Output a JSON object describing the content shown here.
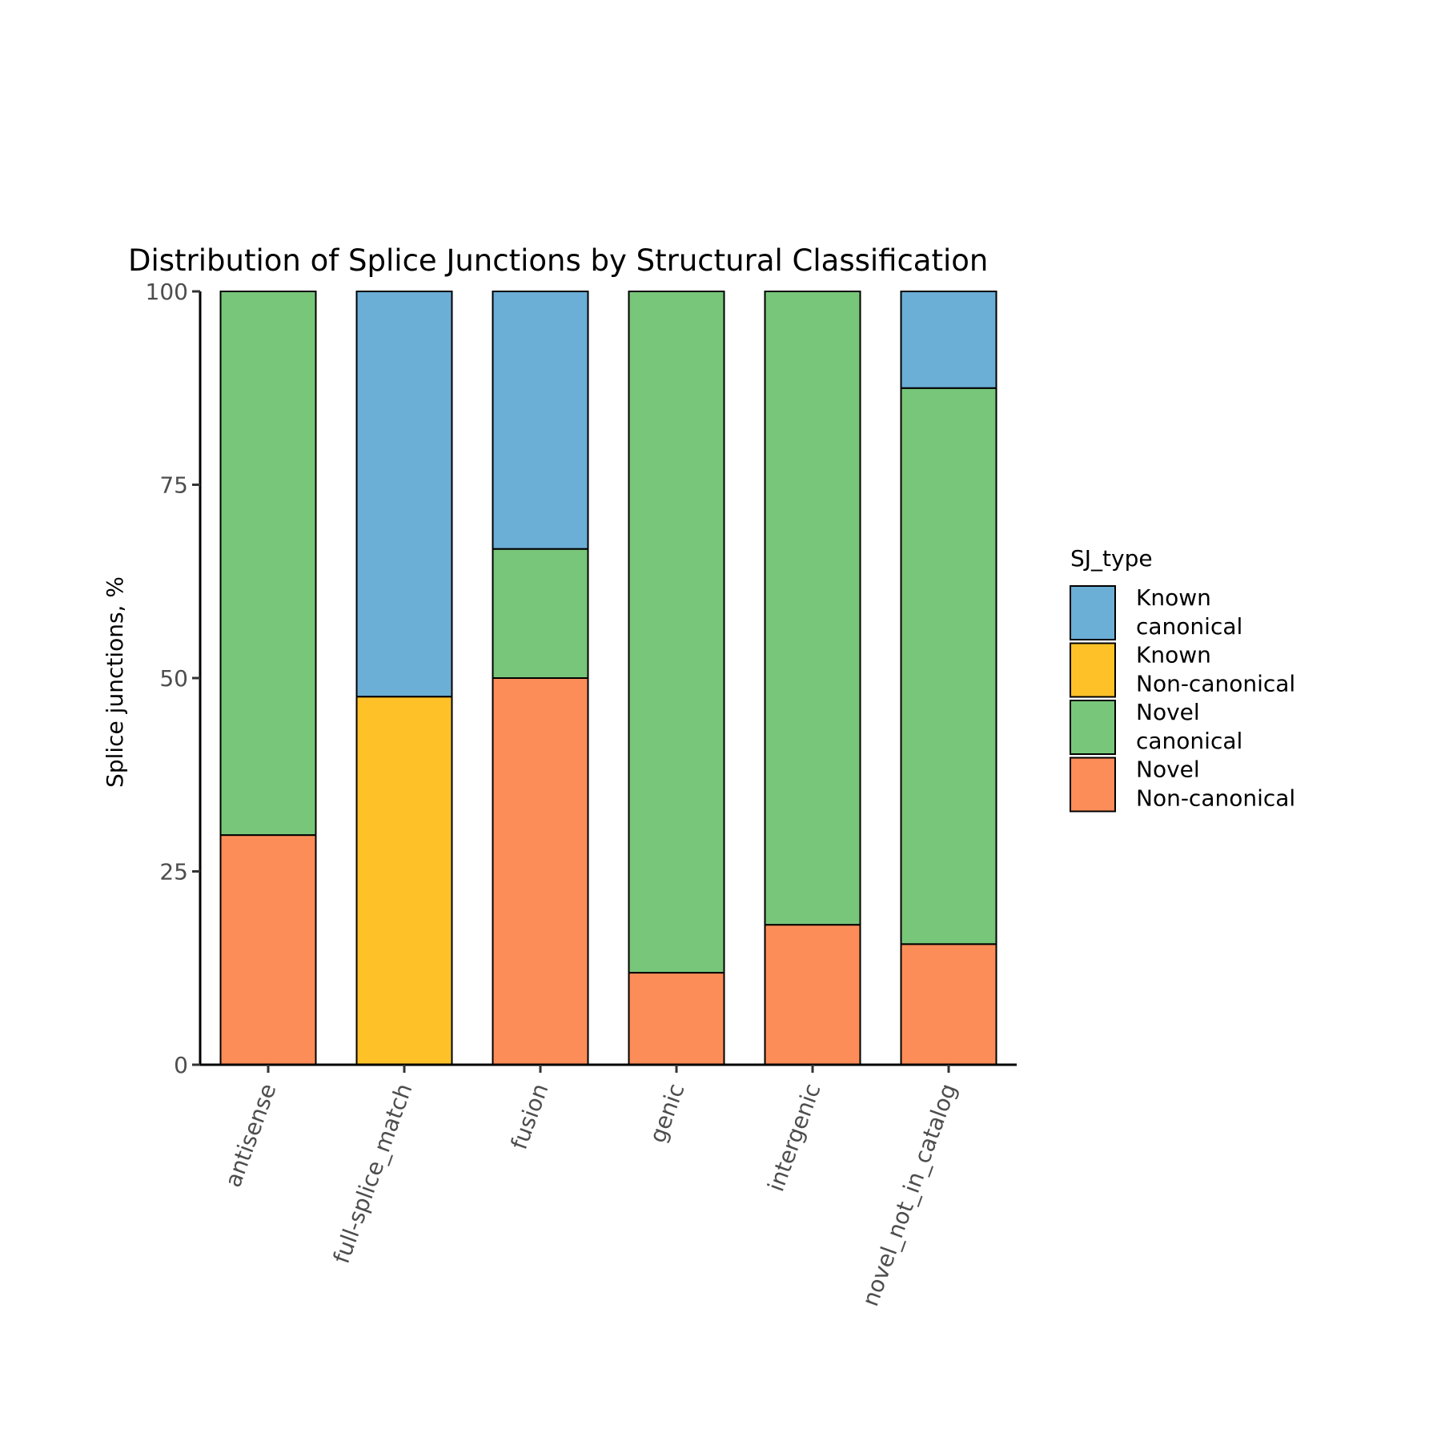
{
  "chart_data": {
    "type": "bar",
    "stacked": true,
    "title": "Distribution of Splice Junctions by Structural Classification",
    "xlabel": "",
    "ylabel": "Splice junctions, %",
    "ylim": [
      0,
      100
    ],
    "yticks": [
      0,
      25,
      50,
      75,
      100
    ],
    "grid": false,
    "legend_position": "right",
    "legend_title": "SJ_type",
    "categories": [
      "antisense",
      "full-splice_match",
      "fusion",
      "genic",
      "intergenic",
      "novel_not_in_catalog"
    ],
    "series": [
      {
        "name": "Novel\nNon-canonical",
        "color": "#FC8D59",
        "values": [
          29.7,
          0,
          50,
          11.9,
          18.1,
          15.6
        ]
      },
      {
        "name": "Known\nNon-canonical",
        "color": "#FEC228",
        "values": [
          0,
          47.6,
          0,
          0,
          0,
          0
        ]
      },
      {
        "name": "Novel\ncanonical",
        "color": "#78C679",
        "values": [
          70.3,
          0,
          16.7,
          88.1,
          81.9,
          71.9
        ]
      },
      {
        "name": "Known\ncanonical",
        "color": "#6BAED6",
        "values": [
          0,
          52.4,
          33.3,
          0,
          0,
          12.5
        ]
      }
    ],
    "legend_order": [
      3,
      1,
      2,
      0
    ]
  }
}
